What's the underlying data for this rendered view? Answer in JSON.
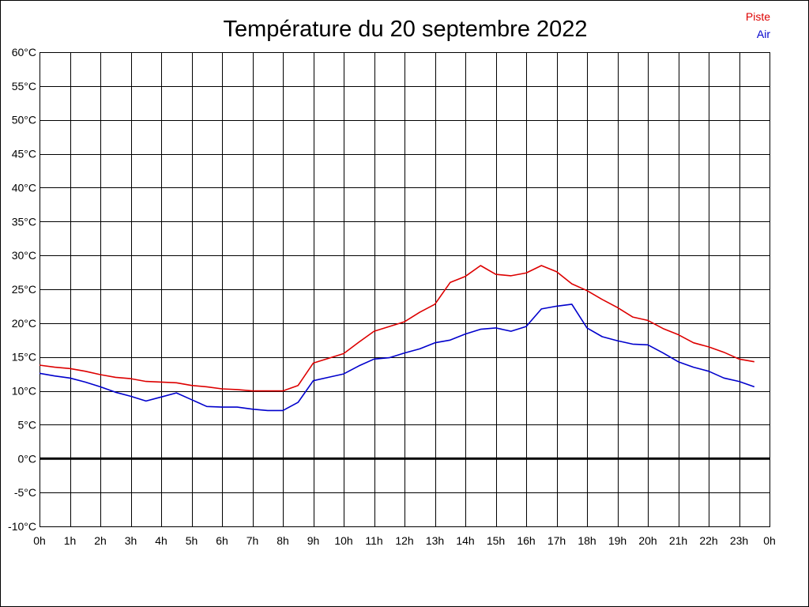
{
  "chart_data": {
    "type": "line",
    "title": "Température du 20 septembre 2022",
    "xlabel": "",
    "ylabel": "",
    "legend_position": "top-right",
    "grid": true,
    "xlim": [
      0,
      24
    ],
    "ylim": [
      -10,
      60
    ],
    "x_tick_labels": [
      "0h",
      "1h",
      "2h",
      "3h",
      "4h",
      "5h",
      "6h",
      "7h",
      "8h",
      "9h",
      "10h",
      "11h",
      "12h",
      "13h",
      "14h",
      "15h",
      "16h",
      "17h",
      "18h",
      "19h",
      "20h",
      "21h",
      "22h",
      "23h",
      "0h"
    ],
    "y_ticks": [
      -10,
      -5,
      0,
      5,
      10,
      15,
      20,
      25,
      30,
      35,
      40,
      45,
      50,
      55,
      60
    ],
    "y_tick_labels": [
      "-10°C",
      "-5°C",
      "0°C",
      "5°C",
      "10°C",
      "15°C",
      "20°C",
      "25°C",
      "30°C",
      "35°C",
      "40°C",
      "45°C",
      "50°C",
      "55°C",
      "60°C"
    ],
    "x": [
      0,
      0.5,
      1,
      1.5,
      2,
      2.5,
      3,
      3.5,
      4,
      4.5,
      5,
      5.5,
      6,
      6.5,
      7,
      7.5,
      8,
      8.5,
      9,
      9.5,
      10,
      10.5,
      11,
      11.5,
      12,
      12.5,
      13,
      13.5,
      14,
      14.5,
      15,
      15.5,
      16,
      16.5,
      17,
      17.5,
      18,
      18.5,
      19,
      19.5,
      20,
      20.5,
      21,
      21.5,
      22,
      22.5,
      23,
      23.5
    ],
    "series": [
      {
        "name": "Piste",
        "color": "#dd0000",
        "values": [
          13.8,
          13.5,
          13.3,
          12.9,
          12.4,
          12.0,
          11.8,
          11.4,
          11.3,
          11.2,
          10.8,
          10.6,
          10.3,
          10.2,
          10.0,
          10.0,
          10.0,
          10.8,
          14.1,
          14.8,
          15.5,
          17.2,
          18.8,
          19.5,
          20.2,
          21.6,
          22.8,
          26.0,
          26.9,
          28.5,
          27.2,
          27.0,
          27.4,
          28.5,
          27.6,
          25.8,
          24.8,
          23.5,
          22.3,
          20.9,
          20.4,
          19.2,
          18.3,
          17.1,
          16.5,
          15.7,
          14.7,
          14.3
        ]
      },
      {
        "name": "Air",
        "color": "#0000cc",
        "values": [
          12.6,
          12.2,
          11.9,
          11.3,
          10.6,
          9.8,
          9.2,
          8.5,
          9.1,
          9.7,
          8.7,
          7.7,
          7.6,
          7.6,
          7.3,
          7.1,
          7.1,
          8.3,
          11.5,
          12.0,
          12.5,
          13.7,
          14.7,
          14.9,
          15.6,
          16.2,
          17.1,
          17.5,
          18.4,
          19.1,
          19.3,
          18.8,
          19.5,
          22.1,
          22.5,
          22.8,
          19.3,
          18.0,
          17.4,
          16.9,
          16.8,
          15.6,
          14.3,
          13.5,
          12.9,
          11.9,
          11.4,
          10.6
        ]
      }
    ]
  }
}
